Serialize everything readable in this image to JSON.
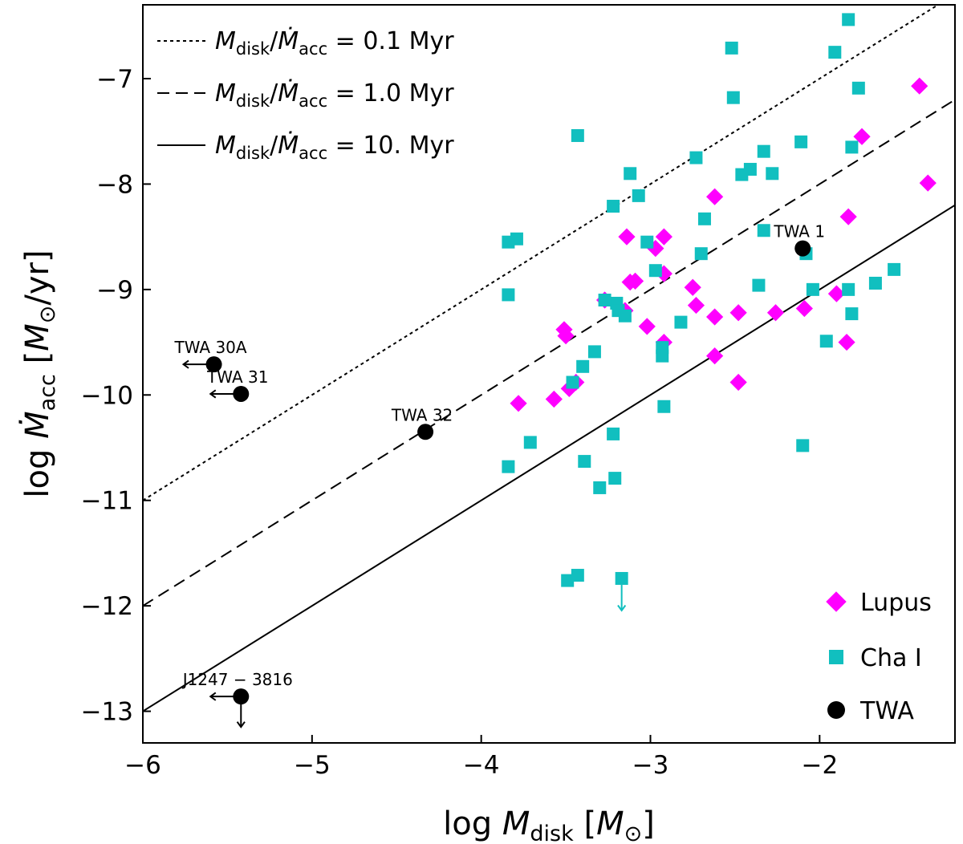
{
  "chart_data": {
    "type": "scatter",
    "title": "",
    "xlabel": "log M_disk [M_sun]",
    "ylabel": "log Mdot_acc [M_sun/yr]",
    "xlabel_parts": {
      "pre": "log ",
      "var": "M",
      "sub": "disk",
      "open": " [",
      "unit": "M",
      "unit_sub": "⊙",
      "close": "]"
    },
    "ylabel_parts": {
      "pre": "log ",
      "var": "Ṁ",
      "sub": "acc",
      "open": " [",
      "unit": "M",
      "unit_sub": "⊙",
      "close": "/yr]"
    },
    "xlim": [
      -6.0,
      -1.2
    ],
    "ylim": [
      -13.3,
      -6.3
    ],
    "xticks": [
      -6,
      -5,
      -4,
      -3,
      -2
    ],
    "xtick_labels": [
      "−6",
      "−5",
      "−4",
      "−3",
      "−2"
    ],
    "yticks": [
      -13,
      -12,
      -11,
      -10,
      -9,
      -8,
      -7
    ],
    "ytick_labels": [
      "−13",
      "−12",
      "−11",
      "−10",
      "−9",
      "−8",
      "−7"
    ],
    "grid": false,
    "ratio_lines": [
      {
        "name": "M_disk/Mdot_acc = 0.1 Myr",
        "offset": -5,
        "style": "dotted",
        "legend": {
          "lhs_a": "M",
          "lhs_a_sub": "disk",
          "slash": "/",
          "lhs_b": "Ṁ",
          "lhs_b_sub": "acc",
          "rhs": " = 0.1 Myr"
        }
      },
      {
        "name": "M_disk/Mdot_acc = 1.0 Myr",
        "offset": -6,
        "style": "dashed",
        "legend": {
          "lhs_a": "M",
          "lhs_a_sub": "disk",
          "slash": "/",
          "lhs_b": "Ṁ",
          "lhs_b_sub": "acc",
          "rhs": " = 1.0 Myr"
        }
      },
      {
        "name": "M_disk/Mdot_acc = 10. Myr",
        "offset": -7,
        "style": "solid",
        "legend": {
          "lhs_a": "M",
          "lhs_a_sub": "disk",
          "slash": "/",
          "lhs_b": "Ṁ",
          "lhs_b_sub": "acc",
          "rhs": " = 10. Myr"
        }
      }
    ],
    "legend_location": "top-left (lines), bottom-right (markers)",
    "series": [
      {
        "name": "Lupus",
        "label": "Lupus",
        "marker": "diamond",
        "color": "#ff00ff",
        "points": [
          [
            -1.41,
            -7.07
          ],
          [
            -1.75,
            -7.55
          ],
          [
            -1.36,
            -7.99
          ],
          [
            -2.62,
            -8.12
          ],
          [
            -1.83,
            -8.31
          ],
          [
            -3.14,
            -8.5
          ],
          [
            -2.92,
            -8.5
          ],
          [
            -2.97,
            -8.61
          ],
          [
            -3.12,
            -8.93
          ],
          [
            -3.09,
            -8.92
          ],
          [
            -2.92,
            -8.85
          ],
          [
            -2.75,
            -8.98
          ],
          [
            -3.27,
            -9.1
          ],
          [
            -3.15,
            -9.2
          ],
          [
            -2.73,
            -9.15
          ],
          [
            -2.62,
            -9.26
          ],
          [
            -2.48,
            -9.22
          ],
          [
            -2.26,
            -9.22
          ],
          [
            -2.09,
            -9.18
          ],
          [
            -1.9,
            -9.04
          ],
          [
            -3.51,
            -9.38
          ],
          [
            -3.5,
            -9.44
          ],
          [
            -2.92,
            -9.5
          ],
          [
            -1.84,
            -9.5
          ],
          [
            -3.02,
            -9.35
          ],
          [
            -2.62,
            -9.63
          ],
          [
            -3.44,
            -9.88
          ],
          [
            -3.48,
            -9.94
          ],
          [
            -2.48,
            -9.88
          ],
          [
            -3.57,
            -10.04
          ],
          [
            -3.78,
            -10.08
          ]
        ]
      },
      {
        "name": "Cha I",
        "label": "Cha I",
        "marker": "square",
        "color": "#11bfbf",
        "points": [
          [
            -1.83,
            -6.44
          ],
          [
            -2.52,
            -6.71
          ],
          [
            -1.91,
            -6.75
          ],
          [
            -1.77,
            -7.09
          ],
          [
            -2.51,
            -7.18
          ],
          [
            -3.43,
            -7.54
          ],
          [
            -2.73,
            -7.75
          ],
          [
            -2.11,
            -7.6
          ],
          [
            -1.81,
            -7.65
          ],
          [
            -2.33,
            -7.69
          ],
          [
            -2.41,
            -7.86
          ],
          [
            -2.46,
            -7.91
          ],
          [
            -2.28,
            -7.9
          ],
          [
            -3.12,
            -7.9
          ],
          [
            -3.07,
            -8.11
          ],
          [
            -3.22,
            -8.21
          ],
          [
            -2.68,
            -8.33
          ],
          [
            -2.33,
            -8.44
          ],
          [
            -3.79,
            -8.52
          ],
          [
            -3.84,
            -8.55
          ],
          [
            -3.02,
            -8.55
          ],
          [
            -2.7,
            -8.66
          ],
          [
            -2.08,
            -8.66
          ],
          [
            -2.97,
            -8.82
          ],
          [
            -1.56,
            -8.81
          ],
          [
            -1.67,
            -8.94
          ],
          [
            -2.36,
            -8.96
          ],
          [
            -2.04,
            -9.0
          ],
          [
            -1.83,
            -9.0
          ],
          [
            -3.84,
            -9.05
          ],
          [
            -3.2,
            -9.13
          ],
          [
            -3.27,
            -9.1
          ],
          [
            -3.19,
            -9.2
          ],
          [
            -3.15,
            -9.25
          ],
          [
            -1.81,
            -9.23
          ],
          [
            -2.82,
            -9.31
          ],
          [
            -1.96,
            -9.49
          ],
          [
            -2.93,
            -9.55
          ],
          [
            -3.33,
            -9.59
          ],
          [
            -2.93,
            -9.63
          ],
          [
            -3.4,
            -9.73
          ],
          [
            -3.46,
            -9.88
          ],
          [
            -2.92,
            -10.11
          ],
          [
            -3.71,
            -10.45
          ],
          [
            -3.22,
            -10.37
          ],
          [
            -2.1,
            -10.48
          ],
          [
            -3.84,
            -10.68
          ],
          [
            -3.39,
            -10.63
          ],
          [
            -3.21,
            -10.79
          ],
          [
            -3.3,
            -10.88
          ],
          [
            -3.49,
            -11.76
          ],
          [
            -3.43,
            -11.71
          ],
          [
            -3.17,
            -11.74
          ]
        ],
        "upper_limits_y": [
          [
            -3.17,
            -11.74
          ]
        ]
      },
      {
        "name": "TWA",
        "label": "TWA",
        "marker": "circle",
        "color": "#000000",
        "points": [
          {
            "x": -2.1,
            "y": -8.61,
            "name": "TWA 1"
          },
          {
            "x": -5.58,
            "y": -9.71,
            "name": "TWA 30A",
            "upper_limit_x": true
          },
          {
            "x": -5.42,
            "y": -9.99,
            "name": "TWA 31",
            "upper_limit_x": true
          },
          {
            "x": -4.33,
            "y": -10.35,
            "name": "TWA 32"
          },
          {
            "x": -5.42,
            "y": -12.86,
            "name": "J1247 − 3816",
            "upper_limit_x": true,
            "upper_limit_y": true
          }
        ]
      }
    ]
  }
}
